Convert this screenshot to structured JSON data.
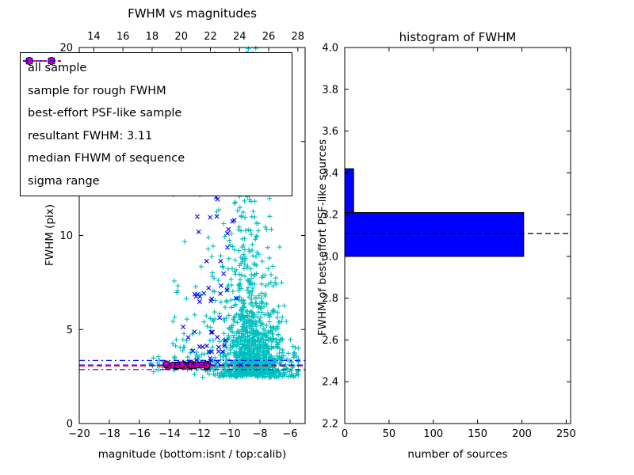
{
  "figure": {
    "background": "#ffffff"
  },
  "legend": {
    "items": [
      {
        "label": "all sample",
        "marker": "plus-pair",
        "color": "#00bfbf"
      },
      {
        "label": "sample for rough FWHM",
        "marker": "x-pair",
        "color": "#0000ff"
      },
      {
        "label": "best-effort PSF-like sample",
        "marker": "circle-pair",
        "color": "#bf00bf"
      },
      {
        "label": "resultant FWHM: 3.11",
        "marker": "dashed-line",
        "color": "#0000ff"
      },
      {
        "label": "median FHWM of sequence",
        "marker": "dashed-line",
        "color": "#ff0000"
      },
      {
        "label": "sigma range",
        "marker": "dashdot-line",
        "color": "#0000ff"
      }
    ]
  },
  "chart_data": [
    {
      "type": "scatter",
      "title": "FWHM vs magnitudes",
      "xlabel": "magnitude (bottom:isnt / top:calib)",
      "ylabel": "FWHM (pix)",
      "xlim": [
        -20,
        -5
      ],
      "ylim": [
        0,
        20
      ],
      "x2lim": [
        13,
        28.5
      ],
      "xticks": [
        -20,
        -18,
        -16,
        -14,
        -12,
        -10,
        -8,
        -6
      ],
      "xtick_labels": [
        "−20",
        "−18",
        "−16",
        "−14",
        "−12",
        "−10",
        "−8",
        "−6"
      ],
      "x2ticks": [
        14,
        16,
        18,
        20,
        22,
        24,
        26,
        28
      ],
      "x2tick_labels": [
        "14",
        "16",
        "18",
        "20",
        "22",
        "24",
        "26",
        "28"
      ],
      "yticks": [
        0,
        5,
        10,
        15,
        20
      ],
      "ytick_labels": [
        "0",
        "5",
        "10",
        "15",
        "20"
      ],
      "grid": false,
      "legend_position": "upper left",
      "series": [
        {
          "name": "all sample",
          "marker": "plus",
          "color": "#00bfbf",
          "seed": 12345,
          "clusters": [
            {
              "n": 750,
              "x": {
                "dist": "normal",
                "mu": -8.6,
                "sigma": 1.05,
                "min": -11.3,
                "max": -5.45
              },
              "y": {
                "dist": "exp",
                "base": 2.55,
                "scale": 2.3,
                "min": 2.4,
                "max": 20
              }
            },
            {
              "n": 420,
              "x": {
                "dist": "normal",
                "mu": -8.2,
                "sigma": 1.35,
                "min": -11.8,
                "max": -5.45
              },
              "y": {
                "dist": "exp",
                "base": 2.45,
                "scale": 0.9,
                "min": 2.3,
                "max": 7
              }
            },
            {
              "n": 130,
              "x": {
                "dist": "normal",
                "mu": -9.2,
                "sigma": 0.55,
                "min": -10.4,
                "max": -7.6
              },
              "y": {
                "dist": "uniform",
                "min": 5,
                "max": 20
              }
            },
            {
              "n": 70,
              "x": {
                "dist": "uniform",
                "min": -13.8,
                "max": -10.3
              },
              "y": {
                "dist": "exp",
                "base": 2.6,
                "scale": 2.8,
                "min": 2.5,
                "max": 17
              }
            },
            {
              "n": 45,
              "x": {
                "dist": "uniform",
                "min": -15.4,
                "max": -10.8
              },
              "y": {
                "dist": "normal",
                "mu": 3.15,
                "sigma": 0.18,
                "min": 2.75,
                "max": 3.7
              }
            },
            {
              "n": 22,
              "x": {
                "dist": "uniform",
                "min": -12.3,
                "max": -10.4
              },
              "y": {
                "dist": "uniform",
                "min": 8,
                "max": 20
              }
            }
          ]
        },
        {
          "name": "sample for rough FWHM",
          "marker": "x",
          "color": "#0000ff",
          "seed": 777,
          "clusters": [
            {
              "n": 48,
              "x": {
                "dist": "normal",
                "mu": -11.2,
                "sigma": 0.85,
                "min": -13.1,
                "max": -9.2
              },
              "y": {
                "dist": "exp",
                "base": 3.05,
                "scale": 2.6,
                "min": 3.0,
                "max": 13.2
              }
            },
            {
              "n": 6,
              "x": {
                "dist": "uniform",
                "min": -10.5,
                "max": -9.0
              },
              "y": {
                "dist": "uniform",
                "min": 9,
                "max": 13
              }
            }
          ]
        },
        {
          "name": "best-effort PSF-like sample",
          "marker": "circle",
          "color": "#bf00bf",
          "edge": "#000000",
          "seed": 99,
          "clusters": [
            {
              "n": 30,
              "x": {
                "dist": "uniform",
                "min": -14.35,
                "max": -11.45
              },
              "y": {
                "dist": "normal",
                "mu": 3.1,
                "sigma": 0.04,
                "min": 3.02,
                "max": 3.2
              }
            }
          ]
        }
      ],
      "lines": [
        {
          "name": "sigma range upper",
          "y": 3.35,
          "color": "#0000ff",
          "style": "dashdot"
        },
        {
          "name": "sigma range lower",
          "y": 2.87,
          "color": "#0000ff",
          "style": "dashdot"
        },
        {
          "name": "resultant FWHM: 3.11",
          "y": 3.11,
          "color": "#0000ff",
          "style": "dashed"
        },
        {
          "name": "median FHWM of sequence",
          "y": 3.06,
          "color": "#ff0000",
          "style": "dashed"
        }
      ]
    },
    {
      "type": "barh",
      "title": "histogram of FWHM",
      "xlabel": "number of sources",
      "ylabel": "FWHM of best-effort PSF-like sources",
      "xlim": [
        0,
        255
      ],
      "ylim": [
        2.2,
        4.0
      ],
      "xticks": [
        0,
        50,
        100,
        150,
        200,
        250
      ],
      "xtick_labels": [
        "0",
        "50",
        "100",
        "150",
        "200",
        "250"
      ],
      "yticks": [
        2.2,
        2.4,
        2.6,
        2.8,
        3.0,
        3.2,
        3.4,
        3.6,
        3.8,
        4.0
      ],
      "ytick_labels": [
        "2.2",
        "2.4",
        "2.6",
        "2.8",
        "3.0",
        "3.2",
        "3.4",
        "3.6",
        "3.8",
        "4.0"
      ],
      "grid": false,
      "bar_color": "#0000ff",
      "bar_edge": "#000000",
      "bars": [
        {
          "from": 3.0,
          "to": 3.21,
          "count": 202
        },
        {
          "from": 3.21,
          "to": 3.42,
          "count": 10
        }
      ],
      "hline": {
        "y": 3.11,
        "color": "#000000",
        "style": "dashed"
      }
    }
  ]
}
